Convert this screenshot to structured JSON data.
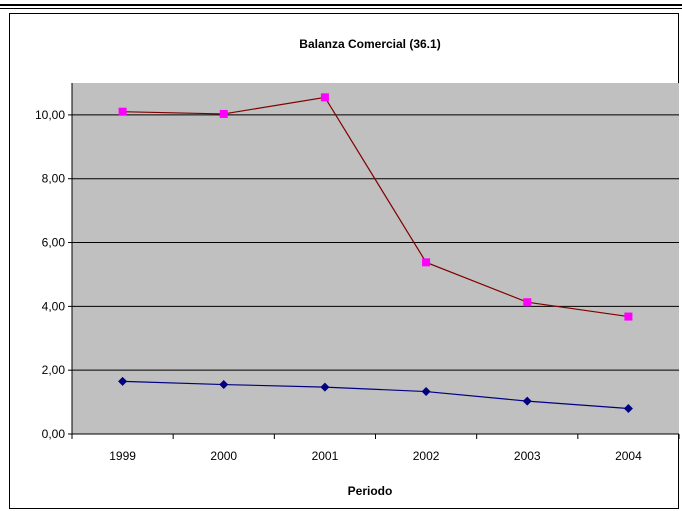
{
  "chart_data": {
    "type": "line",
    "title": "Balanza Comercial (36.1)",
    "xlabel": "Periodo",
    "ylabel": "",
    "categories": [
      "1999",
      "2000",
      "2001",
      "2002",
      "2003",
      "2004"
    ],
    "ylim": [
      0,
      11
    ],
    "yticks": [
      "0,00",
      "2,00",
      "4,00",
      "6,00",
      "8,00",
      "10,00"
    ],
    "ytick_values": [
      0,
      2,
      4,
      6,
      8,
      10
    ],
    "grid": true,
    "legend": "none",
    "plot_background": "#c0c0c0",
    "series": [
      {
        "values": [
          10.1,
          10.03,
          10.55,
          5.38,
          4.13,
          3.68
        ],
        "line_color": "#800000",
        "marker_color": "#ff00ff",
        "marker": "square"
      },
      {
        "values": [
          1.65,
          1.55,
          1.47,
          1.33,
          1.03,
          0.8
        ],
        "line_color": "#000080",
        "marker_color": "#000080",
        "marker": "diamond"
      }
    ]
  }
}
